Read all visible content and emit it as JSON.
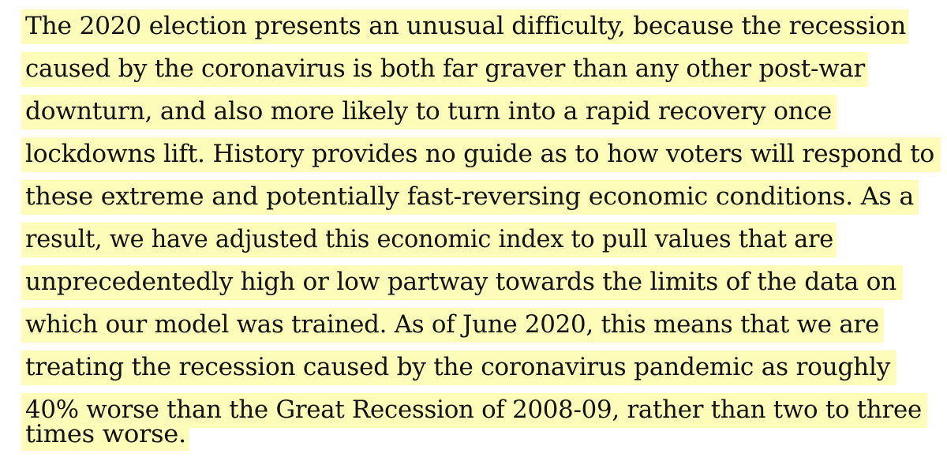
{
  "document": {
    "paragraph_lines": [
      "The 2020 election presents an unusual difficulty, because the recession",
      "caused by the coronavirus is both far graver than any other post-war",
      "downturn, and also more likely to turn into a rapid recovery once",
      "lockdowns lift. History provides no guide as to how voters will respond to",
      "these extreme and potentially fast-reversing economic conditions. As a",
      "result, we have adjusted this economic index to pull values that are",
      "unprecedentedly high or low partway towards the limits of the data on",
      "which our model was trained. As of June 2020, this means that we are",
      "treating the recession caused by the coronavirus pandemic as roughly",
      "40% worse than the Great Recession of 2008-09, rather than two to three",
      "times worse."
    ]
  },
  "colors": {
    "highlight": "#fdfcb9",
    "text": "#121212",
    "background": "#ffffff"
  }
}
